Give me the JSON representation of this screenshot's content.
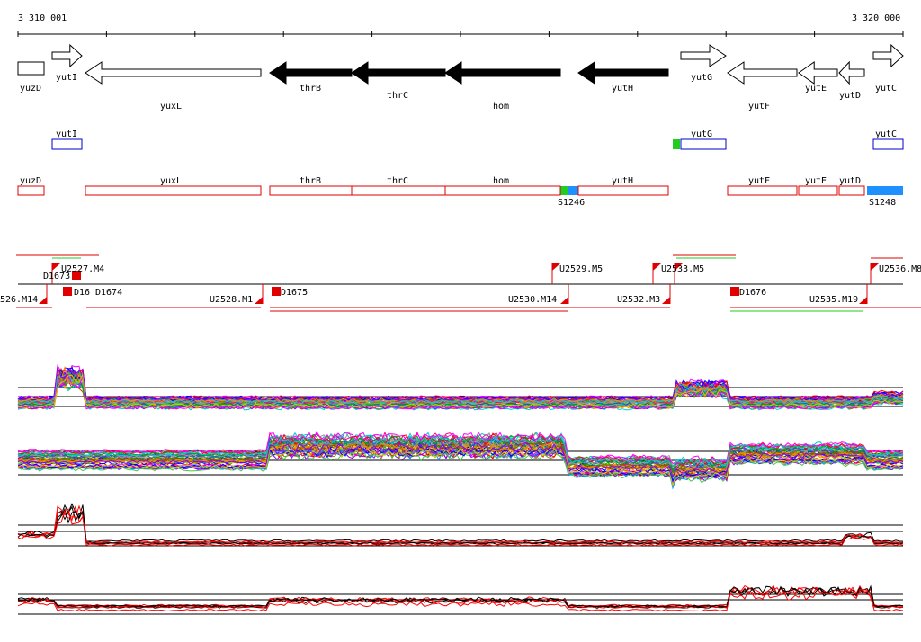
{
  "ruler": {
    "start_label": "3 310 001",
    "end_label": "3 320 000"
  },
  "colors": {
    "line": "#000000",
    "feature_red": "#e00000",
    "feature_blue": "#0000cc",
    "marker_green": "#22cc22",
    "marker_blue": "#1e90ff",
    "track_red": "#ff0000"
  },
  "genes": [
    {
      "name": "yuzD",
      "strand": "none",
      "filled": false
    },
    {
      "name": "yutI",
      "strand": "+",
      "filled": false
    },
    {
      "name": "yuxL",
      "strand": "-",
      "filled": false
    },
    {
      "name": "thrB",
      "strand": "-",
      "filled": true
    },
    {
      "name": "thrC",
      "strand": "-",
      "filled": true
    },
    {
      "name": "hom",
      "strand": "-",
      "filled": true
    },
    {
      "name": "yutH",
      "strand": "-",
      "filled": true
    },
    {
      "name": "yutG",
      "strand": "+",
      "filled": false
    },
    {
      "name": "yutF",
      "strand": "-",
      "filled": false
    },
    {
      "name": "yutE",
      "strand": "-",
      "filled": false
    },
    {
      "name": "yutD",
      "strand": "-",
      "filled": false
    },
    {
      "name": "yutC",
      "strand": "+",
      "filled": false
    }
  ],
  "blue_boxes": [
    {
      "name": "yutI"
    },
    {
      "name": "yutG"
    },
    {
      "name": "yutC"
    }
  ],
  "red_boxes": [
    {
      "name": "yuzD"
    },
    {
      "name": "yuxL"
    },
    {
      "name": "thrB"
    },
    {
      "name": "thrC"
    },
    {
      "name": "hom"
    },
    {
      "name": "yutH"
    },
    {
      "name": "yutF"
    },
    {
      "name": "yutE"
    },
    {
      "name": "yutD"
    }
  ],
  "sites": [
    {
      "name": "S1246"
    },
    {
      "name": "S1248"
    }
  ],
  "segment_labels": [
    {
      "text": "D1673"
    },
    {
      "text": "U2527.M4"
    },
    {
      "text": "D16"
    },
    {
      "text": "D1674"
    },
    {
      "text": "526.M14"
    },
    {
      "text": "U2528.M1"
    },
    {
      "text": "D1675"
    },
    {
      "text": "U2529.M5"
    },
    {
      "text": "U2530.M14"
    },
    {
      "text": "U2532.M3"
    },
    {
      "text": "U2533.M5"
    },
    {
      "text": "D1676"
    },
    {
      "text": "U2535.M19"
    },
    {
      "text": "U2536.M8"
    }
  ]
}
